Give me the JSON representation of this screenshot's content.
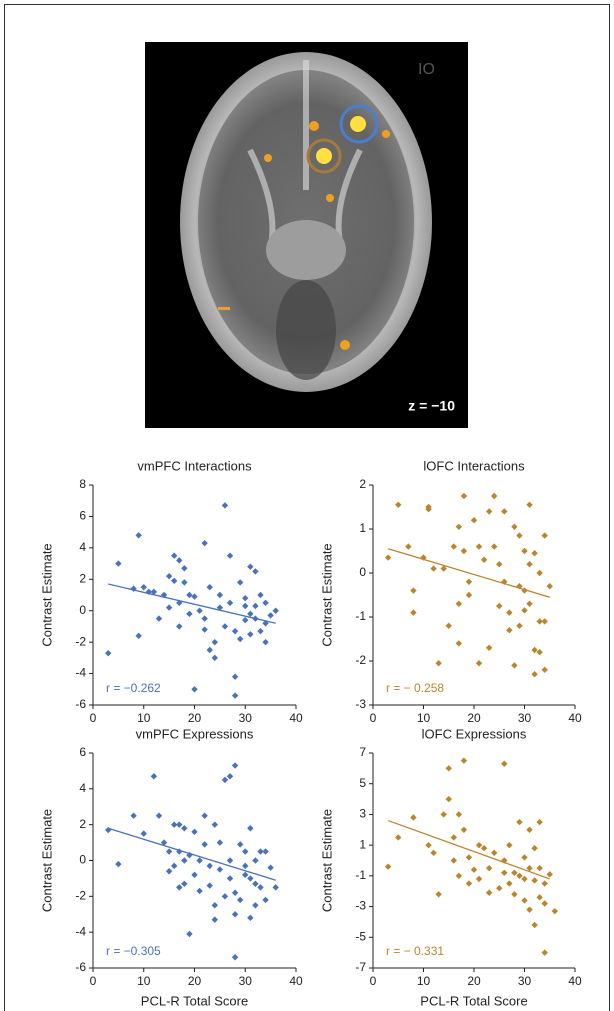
{
  "image": {
    "corner_label": "IO",
    "slice_label": "z = −10"
  },
  "chart_data": [
    {
      "type": "scatter",
      "title": "vmPFC Interactions",
      "ylabel": "Contrast Estimate",
      "annotation": "r = −0.262",
      "color": "#4a72b8",
      "xlim": [
        0,
        40
      ],
      "xticks": [
        0,
        10,
        20,
        30,
        40
      ],
      "ylim": [
        -6,
        8
      ],
      "yticks": [
        -6,
        -4,
        -2,
        0,
        2,
        4,
        6,
        8
      ],
      "x": [
        3,
        5,
        8,
        9,
        9,
        10,
        11,
        12,
        13,
        14,
        15,
        15,
        16,
        16,
        17,
        17,
        17,
        18,
        18,
        19,
        19,
        20,
        20,
        21,
        22,
        22,
        22,
        23,
        23,
        24,
        24,
        25,
        25,
        26,
        26,
        27,
        27,
        28,
        28,
        28,
        29,
        29,
        30,
        30,
        30,
        31,
        31,
        31,
        32,
        32,
        32,
        33,
        33,
        34,
        34,
        34,
        35,
        36
      ],
      "y": [
        -2.7,
        3,
        1.4,
        4.8,
        -1.6,
        1.5,
        1.2,
        1.2,
        -0.5,
        1,
        2.2,
        0.2,
        3.5,
        1.9,
        3.2,
        0.5,
        -1,
        2.7,
        1.8,
        1,
        -0.2,
        -5,
        0.9,
        0,
        4.3,
        -0.5,
        -1.2,
        1.5,
        -2.5,
        -3,
        -2,
        1,
        0.2,
        6.7,
        -1,
        3.5,
        0.5,
        -1.3,
        -4.2,
        -5.4,
        1.8,
        -1.8,
        0.8,
        0.3,
        -0.6,
        2.8,
        -0.2,
        -1.5,
        2.5,
        -0.5,
        0.3,
        1,
        -1.3,
        -0.8,
        0.5,
        -2,
        -0.3,
        0
      ],
      "fit": {
        "x": [
          3,
          36
        ],
        "y": [
          1.7,
          -0.8
        ]
      }
    },
    {
      "type": "scatter",
      "title": "lOFC Interactions",
      "ylabel": "Contrast Estimate",
      "annotation": "r = − 0.258",
      "color": "#b8862c",
      "xlim": [
        0,
        40
      ],
      "xticks": [
        0,
        10,
        20,
        30,
        40
      ],
      "ylim": [
        -3,
        2
      ],
      "yticks": [
        -3,
        -2,
        -1,
        0,
        1,
        2
      ],
      "x": [
        3,
        5,
        7,
        8,
        8,
        10,
        11,
        11,
        12,
        13,
        14,
        15,
        16,
        17,
        17,
        17,
        18,
        18,
        19,
        19,
        20,
        21,
        21,
        22,
        23,
        23,
        24,
        24,
        25,
        25,
        26,
        26,
        27,
        27,
        28,
        28,
        29,
        29,
        29,
        30,
        30,
        30,
        31,
        31,
        31,
        32,
        32,
        32,
        33,
        33,
        33,
        34,
        34,
        34,
        35
      ],
      "y": [
        0.35,
        1.55,
        0.6,
        -0.4,
        -0.9,
        0.35,
        1.5,
        1.45,
        0.1,
        -2.05,
        0.1,
        -1.2,
        0.6,
        1.05,
        -0.7,
        -1.6,
        1.75,
        0.5,
        -0.2,
        -0.5,
        1.2,
        0.6,
        -2.05,
        0.3,
        1.4,
        -1.7,
        1.75,
        0.6,
        -0.75,
        0.2,
        1.4,
        -0.2,
        -0.9,
        -1.3,
        -2.1,
        1.05,
        0.85,
        -0.3,
        -1.2,
        0.5,
        -0.4,
        -0.85,
        1.55,
        0.2,
        -0.7,
        0.45,
        -1.75,
        -2.3,
        0,
        -1.1,
        -1.8,
        0.85,
        -1.1,
        -2.2,
        -0.3
      ],
      "fit": {
        "x": [
          3,
          35
        ],
        "y": [
          0.55,
          -0.55
        ]
      }
    },
    {
      "type": "scatter",
      "title": "vmPFC Expressions",
      "xlabel": "PCL-R Total Score",
      "ylabel": "Contrast Estimate",
      "annotation": "r = −0.305",
      "color": "#4a72b8",
      "xlim": [
        0,
        40
      ],
      "xticks": [
        0,
        10,
        20,
        30,
        40
      ],
      "ylim": [
        -6,
        6
      ],
      "yticks": [
        -6,
        -4,
        -2,
        0,
        2,
        4,
        6
      ],
      "x": [
        3,
        5,
        8,
        10,
        12,
        13,
        14,
        15,
        15,
        16,
        16,
        17,
        17,
        17,
        18,
        18,
        18,
        19,
        19,
        20,
        20,
        21,
        21,
        22,
        22,
        23,
        23,
        24,
        24,
        24,
        25,
        25,
        26,
        26,
        27,
        27,
        27,
        28,
        28,
        28,
        28,
        29,
        29,
        30,
        30,
        30,
        31,
        31,
        31,
        32,
        32,
        32,
        33,
        33,
        34,
        34,
        35,
        36
      ],
      "y": [
        1.7,
        -0.2,
        2.5,
        1.5,
        4.7,
        2.5,
        1,
        0.5,
        -0.6,
        2,
        -0.3,
        2,
        0.5,
        -1.5,
        1.8,
        0,
        -1.3,
        0.3,
        -4.1,
        1.6,
        -0.8,
        0,
        -1.7,
        2.5,
        0.9,
        -0.3,
        -1.4,
        2,
        -2.5,
        -3.3,
        1,
        -0.5,
        4.5,
        -2,
        4.7,
        0,
        -1,
        5.3,
        -1.8,
        -3,
        -5.4,
        0.9,
        -2.2,
        0.5,
        -0.3,
        -0.8,
        1.8,
        -1,
        -3.2,
        0,
        -1.3,
        -2.5,
        0.5,
        -1.5,
        0.5,
        -2.2,
        -0.4,
        -1.5
      ],
      "fit": {
        "x": [
          3,
          36
        ],
        "y": [
          1.8,
          -1.1
        ]
      }
    },
    {
      "type": "scatter",
      "title": "lOFC Expressions",
      "xlabel": "PCL-R Total Score",
      "ylabel": "Contrast Estimate",
      "annotation": "r = − 0.331",
      "color": "#b8862c",
      "xlim": [
        0,
        40
      ],
      "xticks": [
        0,
        10,
        20,
        30,
        40
      ],
      "ylim": [
        -7,
        7
      ],
      "yticks": [
        -7,
        -5,
        -3,
        -1,
        1,
        3,
        5,
        7
      ],
      "x": [
        3,
        5,
        8,
        11,
        12,
        13,
        14,
        15,
        15,
        16,
        16,
        17,
        17,
        18,
        18,
        19,
        19,
        20,
        21,
        21,
        22,
        23,
        23,
        24,
        25,
        26,
        26,
        26,
        27,
        27,
        28,
        28,
        29,
        29,
        30,
        30,
        30,
        31,
        31,
        31,
        32,
        32,
        32,
        33,
        33,
        33,
        34,
        34,
        35,
        36,
        34
      ],
      "y": [
        -0.4,
        1.5,
        2.8,
        1,
        0.5,
        -2.2,
        3,
        4,
        6,
        0,
        1.5,
        3,
        -1,
        6.5,
        2,
        0.2,
        -1.5,
        -0.6,
        1,
        -1.2,
        0.8,
        -0.5,
        -2.1,
        0.5,
        -1.8,
        6.3,
        0,
        -0.8,
        1,
        -1.5,
        -0.8,
        -2.2,
        2.5,
        -1,
        0.2,
        -1.2,
        -2.6,
        2,
        -0.5,
        -3.2,
        0.8,
        -1.3,
        -4.2,
        2.5,
        -0.5,
        -2.4,
        -1.5,
        -2.8,
        -0.9,
        -3.3,
        -6
      ],
      "fit": {
        "x": [
          3,
          35
        ],
        "y": [
          2.6,
          -1.2
        ]
      }
    }
  ]
}
